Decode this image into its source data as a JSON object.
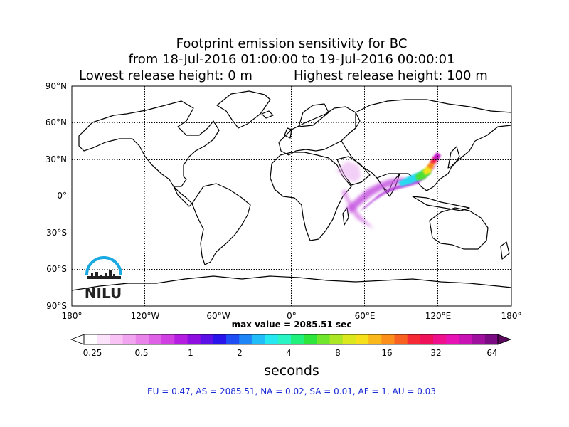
{
  "title": {
    "line1": "Footprint emission sensitivity for BC",
    "line2": "from 18-Jul-2016 01:00:00 to 19-Jul-2016 00:00:01",
    "lowest": "Lowest release height: 0 m",
    "highest": "Highest release height: 100 m"
  },
  "map": {
    "lat_labels": [
      "90°N",
      "60°N",
      "30°N",
      "0°",
      "30°S",
      "60°S",
      "90°S"
    ],
    "lon_labels": [
      "180°",
      "120°W",
      "60°W",
      "0°",
      "60°E",
      "120°E",
      "180°"
    ],
    "logo_text": "NILU"
  },
  "max_value": "max value = 2085.51 sec",
  "colorbar": {
    "ticks": [
      "0.25",
      "0.5",
      "1",
      "2",
      "4",
      "8",
      "16",
      "32",
      "64"
    ],
    "colors": [
      "#ffffff",
      "#fde2fb",
      "#f9c3f5",
      "#f1a4ef",
      "#e985ea",
      "#de62e6",
      "#cf3fe2",
      "#b51ee0",
      "#8f0ee0",
      "#5a10e6",
      "#2a14ec",
      "#1e4ef4",
      "#1f86f7",
      "#20bdf8",
      "#25e8f0",
      "#2bf4c4",
      "#20f07c",
      "#2ee63b",
      "#6fe52b",
      "#abe724",
      "#dbe81e",
      "#f6e01b",
      "#fab81a",
      "#fb8f1a",
      "#f8611f",
      "#f52a34",
      "#f0115b",
      "#ee108c",
      "#e713b5",
      "#c812b3",
      "#a0109e",
      "#7a0b82"
    ],
    "label": "seconds"
  },
  "stats": "EU = 0.47,  AS = 2085.51,  NA = 0.02,  SA = 0.01,  AF = 1,  AU = 0.03",
  "footprint_colors": {
    "faint": "#e8a9ef",
    "light": "#d77ae6",
    "mid": "#b43ddc",
    "cyan": "#25d9f0",
    "green": "#4ee030",
    "yellow": "#f4e21c",
    "orange": "#f8811c",
    "red": "#f01c4a",
    "magenta": "#c814c8"
  }
}
